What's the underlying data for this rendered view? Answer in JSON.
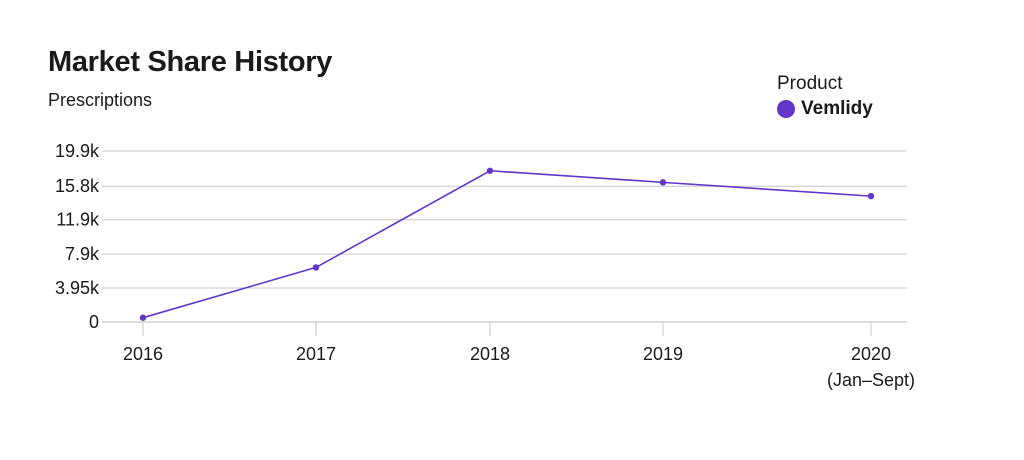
{
  "chart_data": {
    "type": "line",
    "title": "Market Share History",
    "subtitle": "Prescriptions",
    "legend": {
      "title": "Product",
      "placement": "top-right",
      "entries": [
        {
          "name": "Vemlidy",
          "color": "#6236c9"
        }
      ]
    },
    "categories": [
      "2016",
      "2017",
      "2018",
      "2019",
      "2020"
    ],
    "category_sublabels": [
      "",
      "",
      "",
      "",
      "(Jan–Sept)"
    ],
    "series": [
      {
        "name": "Vemlidy",
        "color": "#6236c9",
        "values": [
          500,
          6350,
          17600,
          16250,
          14650
        ]
      }
    ],
    "y_ticks": [
      0,
      3950,
      7900,
      11900,
      15800,
      19900
    ],
    "y_tick_labels": [
      "0",
      "3.95k",
      "7.9k",
      "11.9k",
      "15.8k",
      "19.9k"
    ],
    "ylim": [
      0,
      19900
    ],
    "xlabel": "",
    "ylabel": "",
    "grid": true
  }
}
